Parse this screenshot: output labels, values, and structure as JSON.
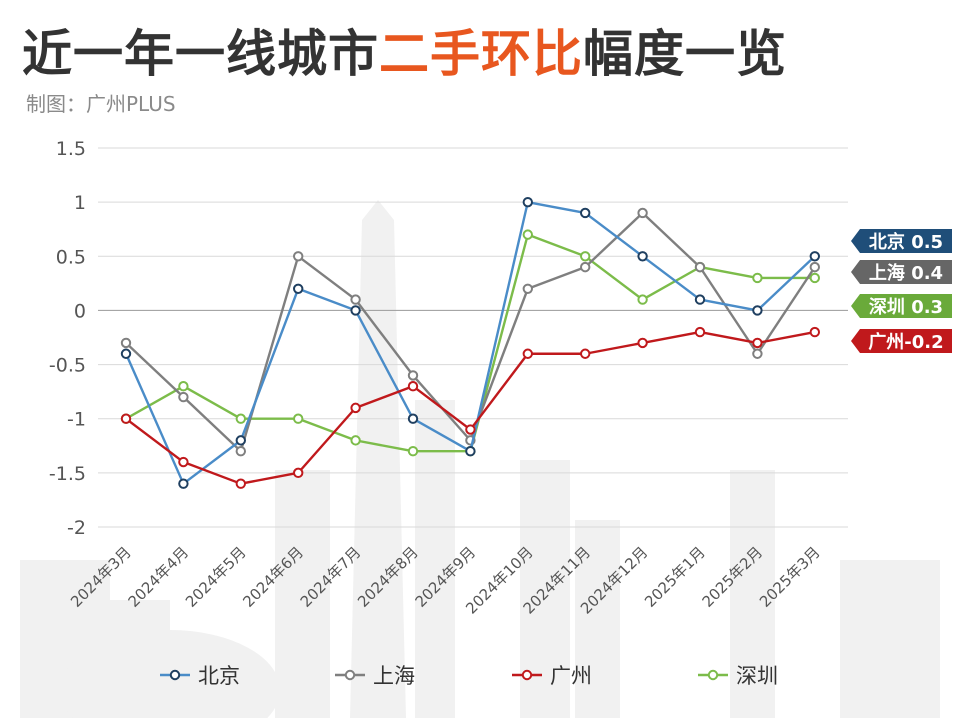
{
  "header": {
    "title_part1": "近一年一线城市",
    "title_highlight": "二手环比",
    "title_part2": "幅度一览",
    "subtitle": "制图：广州PLUS"
  },
  "colors": {
    "title_highlight": "#e8571f",
    "北京": "#4a8cc8",
    "上海": "#7f7f7f",
    "广州": "#c0191c",
    "深圳": "#7cbc4a",
    "tag_北京": "#1f4e79",
    "tag_上海": "#666666",
    "tag_广州": "#c0191c",
    "tag_深圳": "#6aaa3a"
  },
  "chart_data": {
    "type": "line",
    "categories": [
      "2024年3月",
      "2024年4月",
      "2024年5月",
      "2024年6月",
      "2024年7月",
      "2024年8月",
      "2024年9月",
      "2024年10月",
      "2024年11月",
      "2024年12月",
      "2025年1月",
      "2025年2月",
      "2025年3月"
    ],
    "series": [
      {
        "name": "北京",
        "values": [
          -0.4,
          -1.6,
          -1.2,
          0.2,
          0.0,
          -1.0,
          -1.3,
          1.0,
          0.9,
          0.5,
          0.1,
          0.0,
          0.5
        ]
      },
      {
        "name": "上海",
        "values": [
          -0.3,
          -0.8,
          -1.3,
          0.5,
          0.1,
          -0.6,
          -1.2,
          0.2,
          0.4,
          0.9,
          0.4,
          -0.4,
          0.4
        ]
      },
      {
        "name": "广州",
        "values": [
          -1.0,
          -1.4,
          -1.6,
          -1.5,
          -0.9,
          -0.7,
          -1.1,
          -0.4,
          -0.4,
          -0.3,
          -0.2,
          -0.3,
          -0.2
        ]
      },
      {
        "name": "深圳",
        "values": [
          -1.0,
          -0.7,
          -1.0,
          -1.0,
          -1.2,
          -1.3,
          -1.3,
          0.7,
          0.5,
          0.1,
          0.4,
          0.3,
          0.3
        ]
      }
    ],
    "ylim": [
      -2,
      1.5
    ],
    "yticks": [
      "1.5",
      "1",
      "0.5",
      "0",
      "-0.5",
      "-1",
      "-1.5",
      "-2"
    ],
    "end_labels": [
      {
        "series": "北京",
        "text": "北京 0.5"
      },
      {
        "series": "上海",
        "text": "上海 0.4"
      },
      {
        "series": "深圳",
        "text": "深圳 0.3"
      },
      {
        "series": "广州",
        "text": "广州-0.2"
      }
    ],
    "legend_position": "bottom",
    "grid": true
  }
}
